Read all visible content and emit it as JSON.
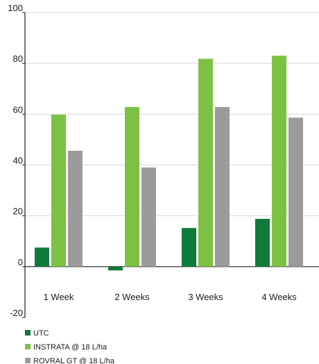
{
  "chart_data": {
    "type": "bar",
    "title": "",
    "xlabel": "",
    "ylabel": "",
    "categories": [
      "1 Week",
      "2 Weeks",
      "3 Weeks",
      "4 Weeks"
    ],
    "series": [
      {
        "name": "UTC",
        "color": "#0f7a3a",
        "values": [
          7.5,
          -1.5,
          15.2,
          18.8
        ]
      },
      {
        "name": "INSTRATA @ 18 L/ha",
        "color": "#7cc143",
        "values": [
          59.8,
          62.8,
          81.8,
          83.0
        ]
      },
      {
        "name": "ROVRAL GT @ 18 L/ha",
        "color": "#9b9b9b",
        "values": [
          45.6,
          39.0,
          62.8,
          58.6
        ]
      }
    ],
    "ylim": [
      -20,
      100
    ],
    "yticks": [
      100,
      80,
      60,
      40,
      20,
      0,
      -20
    ],
    "grid": true,
    "legend": "bottom-left"
  },
  "style": {
    "grid_color": "#d9d9d9",
    "axis_color": "#1a1a1a"
  }
}
